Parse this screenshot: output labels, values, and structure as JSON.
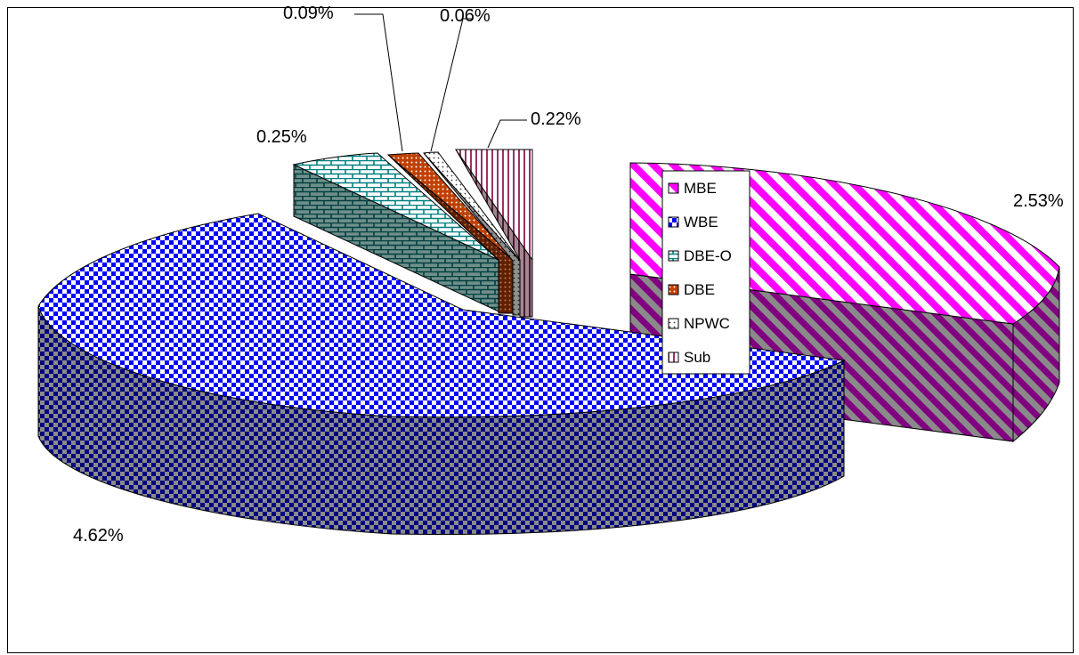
{
  "chart_data": {
    "type": "pie",
    "style": "3d-exploded",
    "legend_position": "inside-right",
    "series": [
      {
        "name": "MBE",
        "value": 2.53,
        "label": "2.53%",
        "color": "#ff00ff",
        "pattern": "wide-diagonal"
      },
      {
        "name": "WBE",
        "value": 4.62,
        "label": "4.62%",
        "color": "#0000ff",
        "pattern": "checker"
      },
      {
        "name": "DBE-O",
        "value": 0.25,
        "label": "0.25%",
        "color": "#008080",
        "pattern": "brick"
      },
      {
        "name": "DBE",
        "value": 0.09,
        "label": "0.09%",
        "color": "#c04000",
        "pattern": "dots"
      },
      {
        "name": "NPWC",
        "value": 0.06,
        "label": "0.06%",
        "color": "#808080",
        "pattern": "dotted"
      },
      {
        "name": "Sub",
        "value": 0.22,
        "label": "0.22%",
        "color": "#993366",
        "pattern": "vertical"
      }
    ]
  }
}
